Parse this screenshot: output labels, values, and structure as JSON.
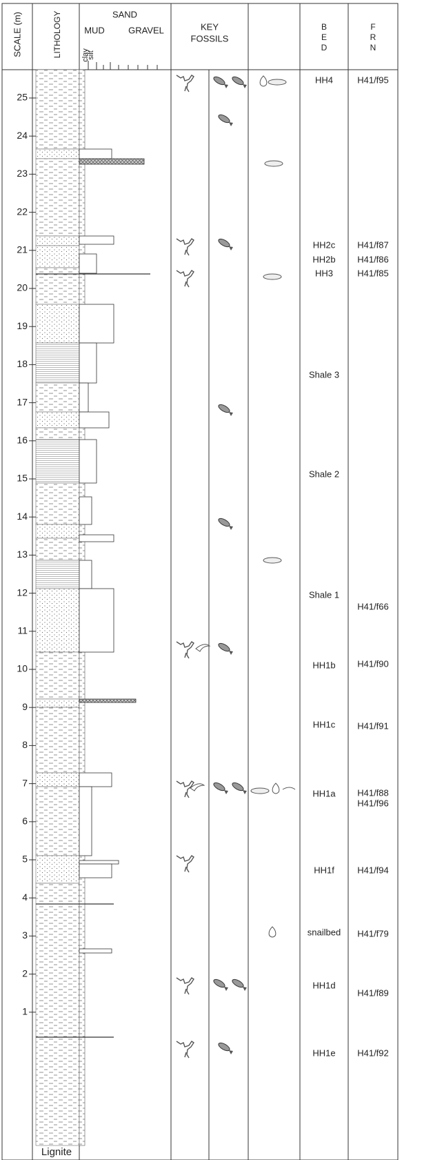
{
  "header": {
    "scale": "SCALE (m)",
    "lithology": "LITHOLOGY",
    "sand": "SAND",
    "mud": "MUD",
    "gravel": "GRAVEL",
    "clay": "clay",
    "silt": "silt",
    "key_fossils": [
      "KEY",
      "FOSSILS"
    ],
    "bed": [
      "B",
      "E",
      "D"
    ],
    "frn": [
      "F",
      "R",
      "N"
    ]
  },
  "scale": [
    1,
    2,
    3,
    4,
    5,
    6,
    7,
    8,
    9,
    10,
    11,
    12,
    13,
    14,
    15,
    16,
    17,
    18,
    19,
    20,
    21,
    22,
    23,
    24,
    25
  ],
  "base_label": "Lignite",
  "beds": [
    "HH4",
    "HH2c",
    "HH2b",
    "HH3",
    "Shale 3",
    "Shale 2",
    "Shale 1",
    "HH1b",
    "HH1c",
    "HH1a",
    "HH1f",
    "snailbed",
    "HH1d",
    "HH1e"
  ],
  "frn": [
    "H41/f95",
    "H41/f87",
    "H41/f86",
    "H41/f85",
    "H41/f66",
    "H41/f90",
    "H41/f91",
    "H41/f88",
    "H41/f96",
    "H41/f94",
    "H41/f79",
    "H41/f89",
    "H41/f92"
  ]
}
